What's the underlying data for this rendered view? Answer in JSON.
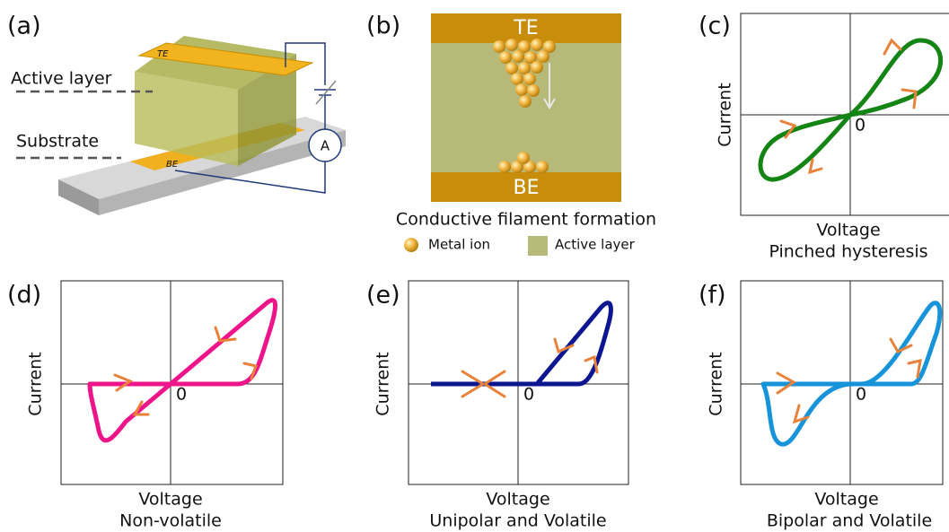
{
  "panels": {
    "a": {
      "label": "(a)",
      "te": "TE",
      "be": "BE",
      "active_layer": "Active layer",
      "substrate": "Substrate",
      "ammeter": "A"
    },
    "b": {
      "label": "(b)",
      "te": "TE",
      "be": "BE",
      "caption": "Conductive filament formation",
      "legend": [
        "Metal ion",
        "Active layer"
      ]
    },
    "c": {
      "label": "(c)",
      "y_label": "Current",
      "x_label": "Voltage",
      "origin": "0",
      "caption": "Pinched hysteresis"
    },
    "d": {
      "label": "(d)",
      "y_label": "Current",
      "x_label": "Voltage",
      "origin": "0",
      "caption": "Non-volatile"
    },
    "e": {
      "label": "(e)",
      "y_label": "Current",
      "x_label": "Voltage",
      "origin": "0",
      "caption": "Unipolar and Volatile"
    },
    "f": {
      "label": "(f)",
      "y_label": "Current",
      "x_label": "Voltage",
      "origin": "0",
      "caption": "Bipolar and Volatile"
    }
  }
}
